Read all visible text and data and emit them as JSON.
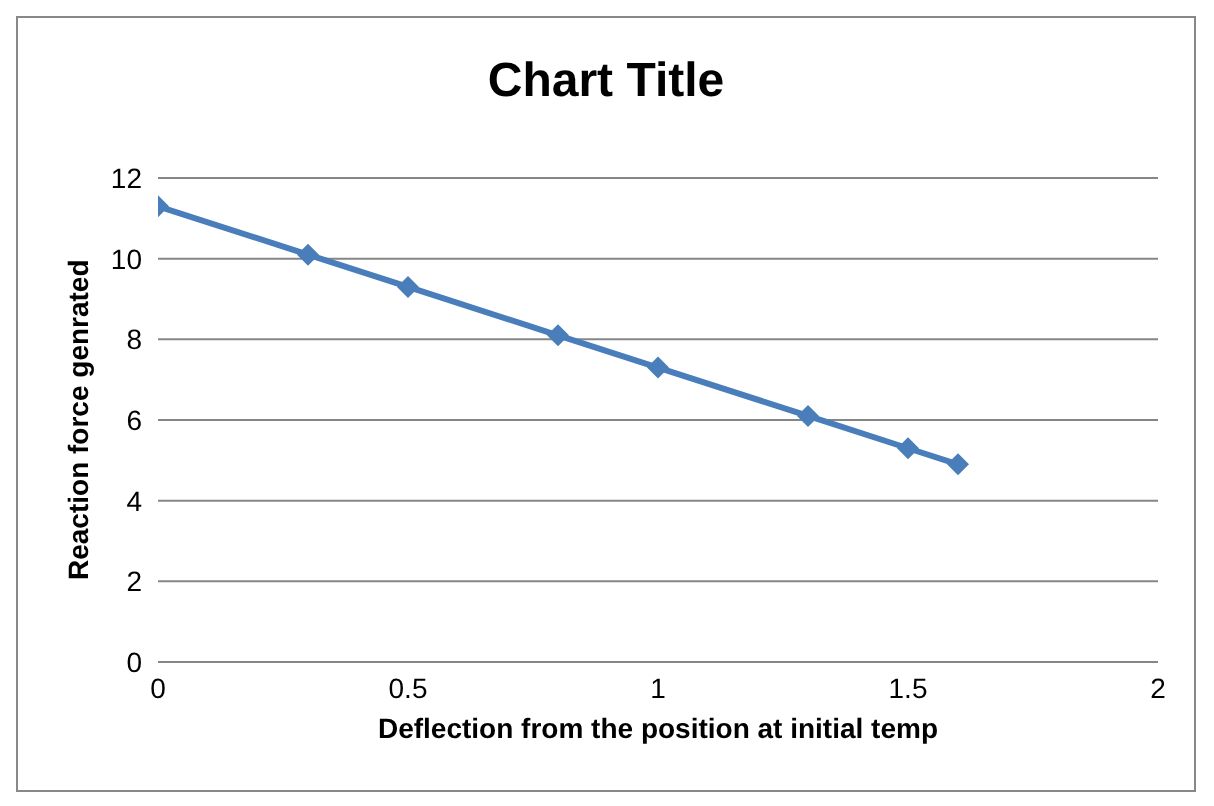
{
  "chart_data": {
    "type": "line",
    "title": "Chart Title",
    "xlabel": "Deflection from the position at initial temp",
    "ylabel": "Reaction force genrated",
    "x": [
      0,
      0.3,
      0.5,
      0.8,
      1,
      1.3,
      1.5,
      1.6
    ],
    "series": [
      {
        "color": "#4a7ebb",
        "values": [
          11.3,
          10.1,
          9.3,
          8.1,
          7.3,
          6.1,
          5.3,
          4.9
        ]
      }
    ],
    "xlim": [
      0,
      2
    ],
    "xticks": [
      0,
      0.5,
      1,
      1.5,
      2
    ],
    "ylim": [
      0,
      12
    ],
    "yticks": [
      0,
      2,
      4,
      6,
      8,
      10,
      12
    ],
    "grid": "y",
    "marker": "diamond",
    "line_style": "solid",
    "legend": false
  }
}
